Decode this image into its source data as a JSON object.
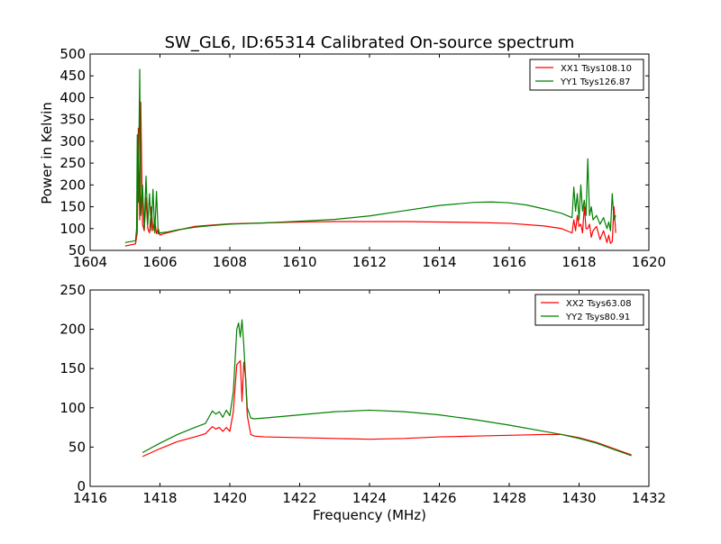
{
  "chart_data": [
    {
      "type": "line",
      "title": "SW_GL6, ID:65314 Calibrated On-source spectrum",
      "xlabel": "",
      "ylabel": "Power in Kelvin",
      "xlim": [
        1604,
        1620
      ],
      "ylim": [
        50,
        500
      ],
      "xticks": [
        1604,
        1606,
        1608,
        1610,
        1612,
        1614,
        1616,
        1618,
        1620
      ],
      "yticks": [
        50,
        100,
        150,
        200,
        250,
        300,
        350,
        400,
        450,
        500
      ],
      "grid": false,
      "legend_position": "top-right",
      "series": [
        {
          "name": "XX1 Tsys108.10",
          "color": "#ff0000",
          "x": [
            1605.0,
            1605.3,
            1605.35,
            1605.38,
            1605.42,
            1605.45,
            1605.5,
            1605.55,
            1605.6,
            1605.65,
            1605.7,
            1605.75,
            1605.8,
            1605.85,
            1605.9,
            1605.95,
            1606.0,
            1606.1,
            1606.3,
            1606.6,
            1607.0,
            1607.5,
            1608.0,
            1609.0,
            1610.0,
            1611.0,
            1612.0,
            1613.0,
            1614.0,
            1615.0,
            1616.0,
            1617.0,
            1617.5,
            1617.8,
            1617.85,
            1617.9,
            1617.95,
            1618.0,
            1618.05,
            1618.1,
            1618.15,
            1618.2,
            1618.25,
            1618.3,
            1618.35,
            1618.4,
            1618.5,
            1618.6,
            1618.7,
            1618.8,
            1618.85,
            1618.9,
            1618.95,
            1619.0,
            1619.05
          ],
          "y": [
            60,
            65,
            90,
            330,
            120,
            390,
            110,
            95,
            170,
            100,
            90,
            150,
            95,
            120,
            88,
            100,
            85,
            88,
            92,
            98,
            105,
            108,
            111,
            113,
            115,
            116,
            116,
            116,
            115,
            114,
            112,
            106,
            100,
            90,
            120,
            95,
            130,
            105,
            110,
            90,
            150,
            100,
            100,
            110,
            80,
            95,
            105,
            75,
            95,
            68,
            85,
            66,
            70,
            150,
            90
          ]
        },
        {
          "name": "YY1 Tsys126.87",
          "color": "#008000",
          "x": [
            1605.0,
            1605.3,
            1605.33,
            1605.35,
            1605.38,
            1605.42,
            1605.45,
            1605.5,
            1605.55,
            1605.6,
            1605.65,
            1605.7,
            1605.75,
            1605.8,
            1605.85,
            1605.9,
            1605.95,
            1606.0,
            1606.2,
            1606.5,
            1607.0,
            1607.5,
            1608.0,
            1609.0,
            1610.0,
            1611.0,
            1612.0,
            1613.0,
            1614.0,
            1615.0,
            1615.5,
            1616.0,
            1616.5,
            1617.0,
            1617.5,
            1617.8,
            1617.85,
            1617.9,
            1617.95,
            1618.0,
            1618.05,
            1618.1,
            1618.15,
            1618.2,
            1618.25,
            1618.3,
            1618.35,
            1618.4,
            1618.5,
            1618.6,
            1618.7,
            1618.8,
            1618.85,
            1618.9,
            1618.95,
            1619.0,
            1619.05
          ],
          "y": [
            68,
            72,
            100,
            315,
            160,
            465,
            130,
            200,
            100,
            220,
            110,
            180,
            95,
            190,
            90,
            185,
            88,
            90,
            92,
            97,
            103,
            107,
            110,
            113,
            117,
            121,
            129,
            141,
            153,
            160,
            161,
            159,
            154,
            145,
            135,
            125,
            195,
            140,
            180,
            120,
            200,
            140,
            165,
            130,
            260,
            130,
            150,
            120,
            130,
            110,
            125,
            100,
            115,
            95,
            180,
            120,
            130
          ]
        }
      ]
    },
    {
      "type": "line",
      "title": "",
      "xlabel": "Frequency (MHz)",
      "ylabel": "",
      "xlim": [
        1416,
        1432
      ],
      "ylim": [
        0,
        250
      ],
      "xticks": [
        1416,
        1418,
        1420,
        1422,
        1424,
        1426,
        1428,
        1430,
        1432
      ],
      "yticks": [
        0,
        50,
        100,
        150,
        200,
        250
      ],
      "grid": false,
      "legend_position": "top-right",
      "series": [
        {
          "name": "XX2 Tsys63.08",
          "color": "#ff0000",
          "x": [
            1417.5,
            1418.0,
            1418.5,
            1419.0,
            1419.3,
            1419.5,
            1419.6,
            1419.7,
            1419.8,
            1419.9,
            1420.0,
            1420.1,
            1420.2,
            1420.3,
            1420.35,
            1420.4,
            1420.45,
            1420.5,
            1420.6,
            1420.7,
            1421.0,
            1422.0,
            1423.0,
            1424.0,
            1425.0,
            1426.0,
            1427.0,
            1428.0,
            1429.0,
            1429.5,
            1430.0,
            1430.5,
            1431.0,
            1431.5
          ],
          "y": [
            38,
            48,
            57,
            63,
            67,
            76,
            73,
            75,
            70,
            75,
            70,
            95,
            155,
            160,
            108,
            158,
            140,
            90,
            66,
            64,
            63,
            62,
            61,
            60,
            61,
            63,
            64,
            65,
            66,
            66,
            62,
            56,
            48,
            40
          ]
        },
        {
          "name": "YY2 Tsys80.91",
          "color": "#008000",
          "x": [
            1417.5,
            1418.0,
            1418.5,
            1419.0,
            1419.3,
            1419.5,
            1419.6,
            1419.7,
            1419.8,
            1419.9,
            1420.0,
            1420.1,
            1420.2,
            1420.25,
            1420.3,
            1420.35,
            1420.4,
            1420.45,
            1420.5,
            1420.6,
            1420.7,
            1421.0,
            1422.0,
            1423.0,
            1424.0,
            1425.0,
            1426.0,
            1427.0,
            1428.0,
            1429.0,
            1429.5,
            1430.0,
            1430.5,
            1431.0,
            1431.5
          ],
          "y": [
            43,
            55,
            66,
            75,
            80,
            96,
            92,
            95,
            88,
            97,
            90,
            120,
            200,
            208,
            190,
            212,
            180,
            140,
            100,
            87,
            86,
            87,
            91,
            95,
            97,
            95,
            91,
            85,
            78,
            70,
            66,
            61,
            55,
            47,
            39
          ]
        }
      ]
    }
  ]
}
